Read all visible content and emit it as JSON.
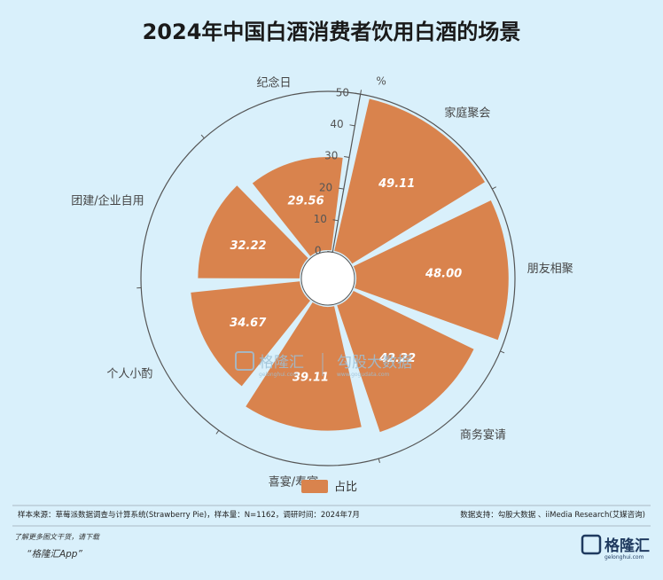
{
  "chart_data": {
    "type": "bar",
    "polar": true,
    "title": "2024年中国白酒消费者饮用白酒的场景",
    "unit": "%",
    "categories": [
      "家庭聚会",
      "朋友相聚",
      "商务宴请",
      "喜宴/寿宴",
      "个人小酌",
      "团建/企业自用",
      "纪念日"
    ],
    "series": [
      {
        "name": "占比",
        "values": [
          49.11,
          48.0,
          42.22,
          39.11,
          34.67,
          32.22,
          29.56
        ],
        "color": "#d9834d"
      }
    ],
    "value_labels": [
      "49.11",
      "48.00",
      "42.22",
      "39.11",
      "34.67",
      "32.22",
      "29.56"
    ],
    "radial_range": [
      0,
      50
    ],
    "radial_ticks": [
      "0",
      "10",
      "20",
      "30",
      "40",
      "50"
    ],
    "legend_position": "bottom"
  },
  "footer": {
    "source": "样本来源：草莓派数据调查与计算系统(Strawberry Pie)，样本量：N=1162，调研时间：2024年7月",
    "support": "数据支持：勾股大数据 、iiMedia Research(艾媒咨询)"
  },
  "watermark": {
    "brand": "格隆汇",
    "brand_url": "gelonghui.com",
    "partner": "勾股大数据",
    "partner_url": "www.gogudata.com"
  },
  "promo": {
    "line1": "了解更多图文干货，请下载",
    "line2": "“格隆汇App”"
  },
  "logo": {
    "name": "格隆汇",
    "url": "gelonghui.com"
  },
  "colors": {
    "background": "#d9f0fb",
    "bar": "#d9834d",
    "axis": "#555555"
  }
}
